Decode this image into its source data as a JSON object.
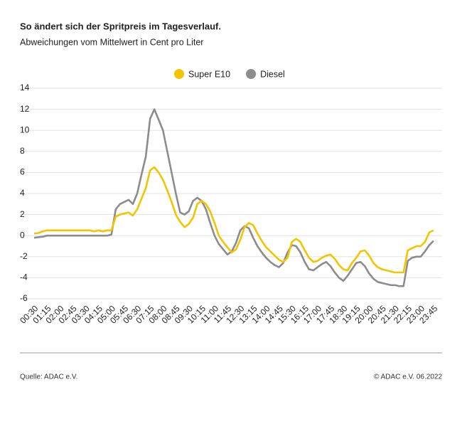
{
  "chart_data": {
    "type": "line",
    "title": "So ändert sich der Spritpreis im Tagesverlauf.",
    "subtitle": "Abweichungen vom Mittelwert in Cent pro Liter",
    "source": "Quelle: ADAC e.V.",
    "copyright": "© ADAC e.V. 06.2022",
    "categories": [
      "00:30",
      null,
      null,
      "01:15",
      null,
      null,
      "02:00",
      null,
      null,
      "02:45",
      null,
      null,
      "03:30",
      null,
      null,
      "04:15",
      null,
      null,
      "05:00",
      null,
      null,
      "05:45",
      null,
      null,
      "06:30",
      null,
      null,
      "07:15",
      null,
      null,
      "08:00",
      null,
      null,
      "08:45",
      null,
      null,
      "09:30",
      null,
      null,
      "10:15",
      null,
      null,
      "11:00",
      null,
      null,
      "11:45",
      null,
      null,
      "12:30",
      null,
      null,
      "13:15",
      null,
      null,
      "14:00",
      null,
      null,
      "14:45",
      null,
      null,
      "15:30",
      null,
      null,
      "16:15",
      null,
      null,
      "17:00",
      null,
      null,
      "17:45",
      null,
      null,
      "18:30",
      null,
      null,
      "19:15",
      null,
      null,
      "20:00",
      null,
      null,
      "20:45",
      null,
      null,
      "21:30",
      null,
      null,
      "22:15",
      null,
      null,
      "23:00",
      null,
      null,
      "23:45"
    ],
    "series": [
      {
        "name": "Super E10",
        "color": "#f2c500",
        "values": [
          0.2,
          0.25,
          0.4,
          0.5,
          0.5,
          0.5,
          0.5,
          0.5,
          0.5,
          0.5,
          0.5,
          0.5,
          0.5,
          0.5,
          0.4,
          0.5,
          0.4,
          0.5,
          0.5,
          1.8,
          2.0,
          2.1,
          2.2,
          1.9,
          2.5,
          3.5,
          4.5,
          6.2,
          6.5,
          6.0,
          5.3,
          4.3,
          3.2,
          2.0,
          1.3,
          0.8,
          1.1,
          1.7,
          3.0,
          3.3,
          3.0,
          2.3,
          1.2,
          0.0,
          -0.6,
          -1.1,
          -1.6,
          -1.3,
          -0.4,
          0.8,
          1.2,
          1.0,
          0.2,
          -0.5,
          -1.1,
          -1.5,
          -1.9,
          -2.3,
          -2.5,
          -2.1,
          -0.6,
          -0.3,
          -0.6,
          -1.4,
          -2.1,
          -2.5,
          -2.4,
          -2.1,
          -1.9,
          -1.8,
          -2.2,
          -2.8,
          -3.2,
          -3.3,
          -2.6,
          -2.1,
          -1.5,
          -1.4,
          -1.9,
          -2.6,
          -3.0,
          -3.2,
          -3.3,
          -3.4,
          -3.5,
          -3.5,
          -3.5,
          -1.4,
          -1.2,
          -1.0,
          -1.0,
          -0.6,
          0.3,
          0.5
        ]
      },
      {
        "name": "Diesel",
        "color": "#8c8c8c",
        "values": [
          -0.2,
          -0.15,
          -0.1,
          0,
          0,
          0,
          0,
          0,
          0,
          0,
          0,
          0,
          0,
          0,
          0,
          0,
          0,
          0,
          0.1,
          2.5,
          3.0,
          3.2,
          3.4,
          3.0,
          4.0,
          5.8,
          7.5,
          11.1,
          12.0,
          11.0,
          10.0,
          8.0,
          6.0,
          4.0,
          2.2,
          2.0,
          2.3,
          3.3,
          3.6,
          3.3,
          2.5,
          1.2,
          0.0,
          -0.8,
          -1.3,
          -1.8,
          -1.5,
          -0.7,
          0.5,
          0.9,
          0.7,
          -0.2,
          -1.0,
          -1.6,
          -2.1,
          -2.5,
          -2.8,
          -3.0,
          -2.6,
          -1.6,
          -0.9,
          -1.0,
          -1.6,
          -2.5,
          -3.2,
          -3.3,
          -3.0,
          -2.7,
          -2.5,
          -2.9,
          -3.5,
          -4.0,
          -4.3,
          -3.8,
          -3.2,
          -2.6,
          -2.5,
          -2.9,
          -3.6,
          -4.1,
          -4.4,
          -4.5,
          -4.6,
          -4.7,
          -4.7,
          -4.8,
          -4.8,
          -2.4,
          -2.1,
          -2.0,
          -2.0,
          -1.5,
          -0.9,
          -0.5
        ]
      }
    ],
    "ylim": [
      -6,
      14
    ],
    "yticks": [
      14,
      12,
      10,
      8,
      6,
      4,
      2,
      0,
      -2,
      -4,
      -6
    ],
    "grid": true
  }
}
